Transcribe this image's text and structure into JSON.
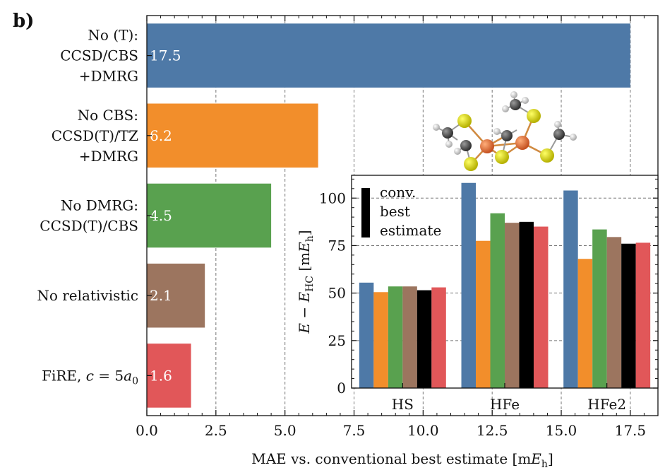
{
  "panel_label": "b)",
  "chart_data": [
    {
      "type": "bar",
      "orientation": "horizontal",
      "categories": [
        [
          "No (T):",
          "CCSD/CBS",
          "+DMRG"
        ],
        [
          "No CBS:",
          "CCSD(T)/TZ",
          "+DMRG"
        ],
        [
          "No DMRG:",
          "CCSD(T)/CBS"
        ],
        [
          "No relativistic"
        ],
        [
          "FiRE, c = 5a₀"
        ]
      ],
      "values": [
        17.5,
        6.2,
        4.5,
        2.1,
        1.6
      ],
      "value_labels": [
        "17.5",
        "6.2",
        "4.5",
        "2.1",
        "1.6"
      ],
      "colors": [
        "#4e79a7",
        "#f28e2b",
        "#59a14f",
        "#9c755f",
        "#e15759"
      ],
      "xlabel": "MAE vs. conventional best estimate [mEₕ]",
      "xlim": [
        0,
        18.5
      ],
      "xticks": [
        0.0,
        2.5,
        5.0,
        7.5,
        10.0,
        12.5,
        15.0,
        17.5
      ],
      "xtick_labels": [
        "0.0",
        "2.5",
        "5.0",
        "7.5",
        "10.0",
        "12.5",
        "15.0",
        "17.5"
      ],
      "grid": "x dashed"
    },
    {
      "type": "bar",
      "inset": true,
      "categories": [
        "HS",
        "HFe",
        "HFe2"
      ],
      "series": [
        {
          "values": [
            55.5,
            108.0,
            104.0
          ],
          "color": "#4e79a7"
        },
        {
          "values": [
            50.5,
            77.5,
            68.0
          ],
          "color": "#f28e2b"
        },
        {
          "values": [
            53.5,
            92.0,
            83.5
          ],
          "color": "#59a14f"
        },
        {
          "values": [
            53.5,
            87.0,
            79.5
          ],
          "color": "#9c755f"
        },
        {
          "values": [
            51.5,
            87.5,
            76.0
          ],
          "color": "#000000"
        },
        {
          "values": [
            53.0,
            85.0,
            76.5
          ],
          "color": "#e15759"
        }
      ],
      "ylabel": "E − E_HC [mEₕ]",
      "ylim": [
        0,
        112
      ],
      "yticks": [
        0,
        25,
        50,
        75,
        100
      ],
      "legend": {
        "lines": [
          "conv.",
          "best",
          "estimate"
        ],
        "color": "#000000",
        "placement": "top-left"
      },
      "grid": "y dashed"
    }
  ]
}
